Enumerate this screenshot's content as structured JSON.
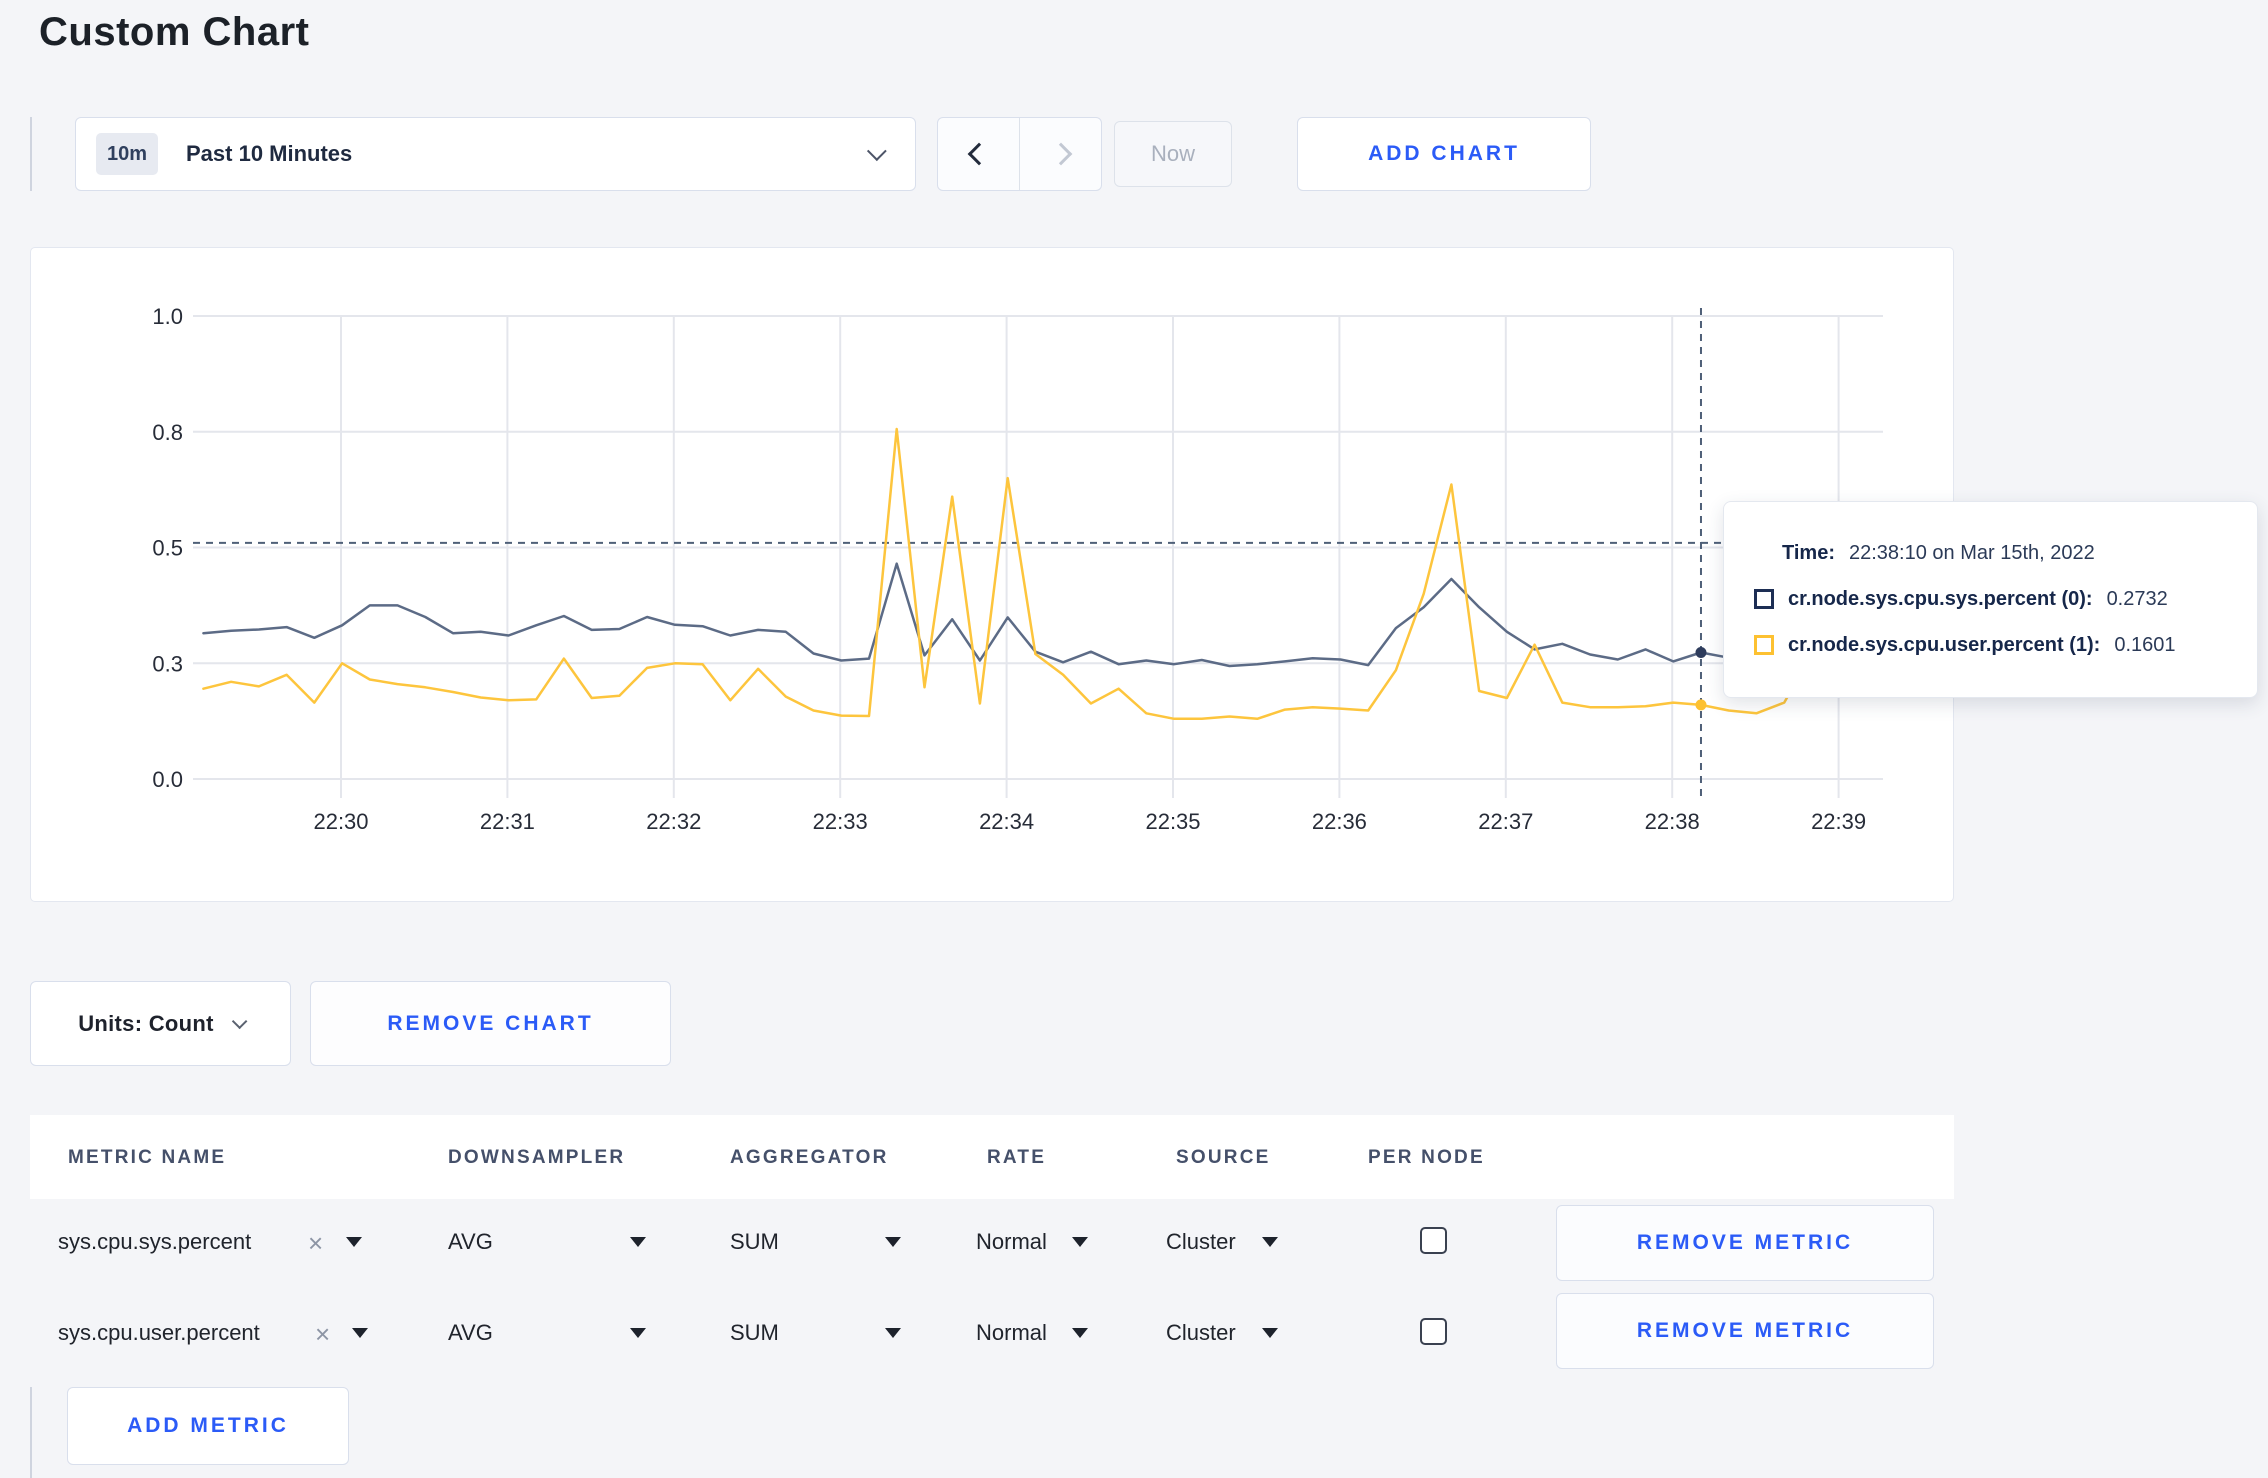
{
  "page": {
    "title": "Custom Chart"
  },
  "toolbar": {
    "time_badge": "10m",
    "time_label": "Past 10 Minutes",
    "now_label": "Now",
    "add_chart_label": "ADD CHART"
  },
  "chart_controls": {
    "units_label": "Units: Count",
    "remove_chart_label": "REMOVE CHART",
    "add_metric_label": "ADD METRIC",
    "remove_metric_label": "REMOVE METRIC"
  },
  "tooltip": {
    "time_label": "Time:",
    "time_value": "22:38:10 on Mar 15th, 2022",
    "series": [
      {
        "label": "cr.node.sys.cpu.sys.percent (0):",
        "value": "0.2732",
        "color": "#1d2e54"
      },
      {
        "label": "cr.node.sys.cpu.user.percent (1):",
        "value": "0.1601",
        "color": "#fdc131"
      }
    ]
  },
  "table": {
    "headers": [
      "METRIC NAME",
      "DOWNSAMPLER",
      "AGGREGATOR",
      "RATE",
      "SOURCE",
      "PER NODE"
    ],
    "rows": [
      {
        "metric": "sys.cpu.sys.percent",
        "downsampler": "AVG",
        "aggregator": "SUM",
        "rate": "Normal",
        "source": "Cluster",
        "per_node_checked": false
      },
      {
        "metric": "sys.cpu.user.percent",
        "downsampler": "AVG",
        "aggregator": "SUM",
        "rate": "Normal",
        "source": "Cluster",
        "per_node_checked": false
      }
    ]
  },
  "chart_data": {
    "type": "line",
    "title": "",
    "xlabel": "",
    "ylabel": "",
    "ylim": [
      0,
      1
    ],
    "grid": true,
    "legend_position": "none",
    "x_start_time": "22:29:10",
    "x_step_seconds": 10,
    "x_ticks": [
      "22:30",
      "22:31",
      "22:32",
      "22:33",
      "22:34",
      "22:35",
      "22:36",
      "22:37",
      "22:38",
      "22:39"
    ],
    "y_tick_values": [
      0,
      0.25,
      0.5,
      0.75,
      1.0
    ],
    "y_tick_labels": [
      "0.0",
      "0.3",
      "0.5",
      "0.8",
      "1.0"
    ],
    "series": [
      {
        "name": "cr.node.sys.cpu.sys.percent",
        "color": "#5c6b86",
        "values": [
          0.315,
          0.32,
          0.323,
          0.328,
          0.305,
          0.332,
          0.375,
          0.375,
          0.35,
          0.315,
          0.318,
          0.31,
          0.332,
          0.352,
          0.322,
          0.324,
          0.35,
          0.333,
          0.33,
          0.31,
          0.322,
          0.318,
          0.271,
          0.256,
          0.26,
          0.465,
          0.267,
          0.345,
          0.256,
          0.349,
          0.275,
          0.252,
          0.275,
          0.248,
          0.256,
          0.248,
          0.257,
          0.244,
          0.248,
          0.254,
          0.261,
          0.258,
          0.246,
          0.326,
          0.371,
          0.432,
          0.371,
          0.318,
          0.28,
          0.292,
          0.269,
          0.258,
          0.28,
          0.254,
          0.2732,
          0.262,
          0.27,
          0.285,
          0.3,
          0.295
        ]
      },
      {
        "name": "cr.node.sys.cpu.user.percent",
        "color": "#fdc53d",
        "values": [
          0.195,
          0.21,
          0.2,
          0.225,
          0.165,
          0.25,
          0.215,
          0.205,
          0.198,
          0.188,
          0.176,
          0.17,
          0.172,
          0.26,
          0.175,
          0.18,
          0.24,
          0.25,
          0.248,
          0.17,
          0.238,
          0.178,
          0.148,
          0.137,
          0.136,
          0.756,
          0.198,
          0.61,
          0.163,
          0.65,
          0.27,
          0.225,
          0.163,
          0.195,
          0.142,
          0.13,
          0.13,
          0.135,
          0.13,
          0.15,
          0.155,
          0.152,
          0.148,
          0.235,
          0.4,
          0.636,
          0.19,
          0.175,
          0.29,
          0.165,
          0.155,
          0.155,
          0.157,
          0.165,
          0.1601,
          0.148,
          0.142,
          0.165,
          0.27,
          0.19
        ]
      }
    ],
    "hover": {
      "time": "22:38:10",
      "x_index": 54,
      "guide_y_value": 0.51,
      "point_values": [
        0.2732,
        0.1601
      ],
      "dot_colors": [
        "#2e3c5c",
        "#fdc131"
      ]
    }
  },
  "colors": {
    "accent_blue": "#2b5bf7",
    "grid": "#e4e6ec",
    "axis_text": "#272c38",
    "guide": "#4f6078"
  }
}
